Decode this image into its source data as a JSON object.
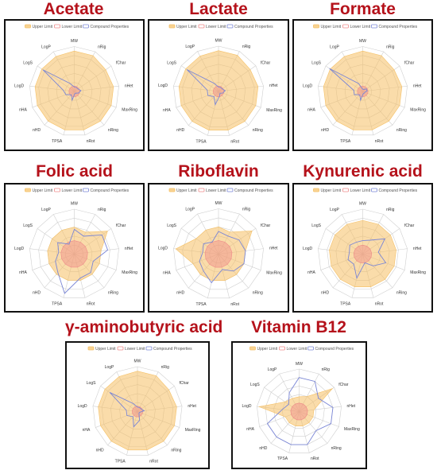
{
  "legend": {
    "upper": "Upper Limit",
    "lower": "Lower Limit",
    "compound": "Compound Properties"
  },
  "colors": {
    "upper": "#f5c065",
    "lower": "#ef8a8a",
    "compound": "#7a86d6",
    "title": "#b5121b",
    "grid": "#cfcfcf"
  },
  "axes": [
    "MW",
    "nRig",
    "fChar",
    "nHet",
    "MaxRing",
    "nRing",
    "nRot",
    "TPSA",
    "nHD",
    "nHA",
    "LogD",
    "LogS",
    "LogP"
  ],
  "chart_data": [
    {
      "type": "radar",
      "title": "Acetate",
      "series": [
        {
          "name": "Upper Limit",
          "values": [
            0.9,
            0.9,
            0.85,
            0.88,
            0.88,
            0.88,
            0.88,
            0.88,
            0.88,
            0.88,
            0.88,
            0.88,
            0.88
          ]
        },
        {
          "name": "Lower Limit",
          "values": [
            0.12,
            0.12,
            0.12,
            0.12,
            0.12,
            0.12,
            0.12,
            0.12,
            0.12,
            0.12,
            0.12,
            0.12,
            0.12
          ]
        },
        {
          "name": "Compound Properties",
          "values": [
            0.1,
            0.1,
            0.1,
            0.15,
            0.1,
            0.05,
            0.05,
            0.2,
            0.1,
            0.2,
            0.25,
            0.85,
            0.2
          ]
        }
      ]
    },
    {
      "type": "radar",
      "title": "Lactate",
      "series": [
        {
          "name": "Upper Limit",
          "values": [
            0.9,
            0.9,
            0.85,
            0.88,
            0.88,
            0.88,
            0.88,
            0.88,
            0.88,
            0.88,
            0.88,
            0.88,
            0.88
          ]
        },
        {
          "name": "Lower Limit",
          "values": [
            0.12,
            0.12,
            0.12,
            0.12,
            0.12,
            0.12,
            0.12,
            0.12,
            0.12,
            0.12,
            0.12,
            0.12,
            0.12
          ]
        },
        {
          "name": "Compound Properties",
          "values": [
            0.1,
            0.1,
            0.1,
            0.15,
            0.1,
            0.05,
            0.1,
            0.3,
            0.15,
            0.25,
            0.25,
            0.85,
            0.2
          ]
        }
      ]
    },
    {
      "type": "radar",
      "title": "Formate",
      "series": [
        {
          "name": "Upper Limit",
          "values": [
            0.9,
            0.9,
            0.85,
            0.88,
            0.88,
            0.88,
            0.88,
            0.88,
            0.88,
            0.88,
            0.88,
            0.88,
            0.88
          ]
        },
        {
          "name": "Lower Limit",
          "values": [
            0.12,
            0.12,
            0.12,
            0.12,
            0.12,
            0.12,
            0.12,
            0.12,
            0.12,
            0.12,
            0.12,
            0.12,
            0.12
          ]
        },
        {
          "name": "Compound Properties",
          "values": [
            0.05,
            0.05,
            0.1,
            0.1,
            0.05,
            0.05,
            0.05,
            0.2,
            0.1,
            0.2,
            0.2,
            0.9,
            0.2
          ]
        }
      ]
    },
    {
      "type": "radar",
      "title": "Folic acid",
      "series": [
        {
          "name": "Upper Limit",
          "values": [
            0.6,
            0.55,
            0.9,
            0.6,
            0.6,
            0.6,
            0.6,
            0.6,
            0.6,
            0.6,
            0.6,
            0.6,
            0.6
          ]
        },
        {
          "name": "Lower Limit",
          "values": [
            0.3,
            0.3,
            0.3,
            0.3,
            0.3,
            0.3,
            0.3,
            0.3,
            0.3,
            0.3,
            0.3,
            0.3,
            0.3
          ]
        },
        {
          "name": "Compound Properties",
          "values": [
            0.55,
            0.45,
            0.75,
            0.75,
            0.45,
            0.55,
            0.55,
            0.9,
            0.55,
            0.45,
            0.35,
            0.45,
            0.25
          ]
        }
      ]
    },
    {
      "type": "radar",
      "title": "Riboflavin",
      "series": [
        {
          "name": "Upper Limit",
          "values": [
            0.6,
            0.55,
            0.9,
            0.6,
            0.6,
            0.6,
            0.6,
            0.6,
            0.6,
            0.6,
            0.95,
            0.6,
            0.6
          ]
        },
        {
          "name": "Lower Limit",
          "values": [
            0.3,
            0.3,
            0.3,
            0.3,
            0.3,
            0.3,
            0.3,
            0.3,
            0.3,
            0.3,
            0.3,
            0.3,
            0.3
          ]
        },
        {
          "name": "Compound Properties",
          "values": [
            0.5,
            0.45,
            0.55,
            0.6,
            0.6,
            0.5,
            0.35,
            0.65,
            0.5,
            0.45,
            0.35,
            0.4,
            0.3
          ]
        }
      ]
    },
    {
      "type": "radar",
      "title": "Kynurenic acid",
      "series": [
        {
          "name": "Upper Limit",
          "values": [
            0.75,
            0.75,
            0.75,
            0.75,
            0.75,
            0.75,
            0.75,
            0.75,
            0.75,
            0.75,
            0.75,
            0.75,
            0.75
          ]
        },
        {
          "name": "Lower Limit",
          "values": [
            0.2,
            0.2,
            0.2,
            0.2,
            0.2,
            0.2,
            0.2,
            0.2,
            0.2,
            0.2,
            0.2,
            0.2,
            0.2
          ]
        },
        {
          "name": "Compound Properties",
          "values": [
            0.3,
            0.35,
            0.6,
            0.35,
            0.55,
            0.35,
            0.2,
            0.55,
            0.3,
            0.35,
            0.3,
            0.35,
            0.3
          ]
        }
      ]
    },
    {
      "type": "radar",
      "title": "γ-aminobutyric acid",
      "series": [
        {
          "name": "Upper Limit",
          "values": [
            0.9,
            0.9,
            0.85,
            0.88,
            0.88,
            0.88,
            0.88,
            0.88,
            0.88,
            0.88,
            0.88,
            0.88,
            0.88
          ]
        },
        {
          "name": "Lower Limit",
          "values": [
            0.12,
            0.12,
            0.12,
            0.12,
            0.12,
            0.12,
            0.12,
            0.12,
            0.12,
            0.12,
            0.12,
            0.12,
            0.12
          ]
        },
        {
          "name": "Compound Properties",
          "values": [
            0.1,
            0.1,
            0.1,
            0.15,
            0.05,
            0.05,
            0.2,
            0.35,
            0.15,
            0.25,
            0.25,
            0.75,
            0.2
          ]
        }
      ]
    },
    {
      "type": "radar",
      "title": "Vitamin B12",
      "series": [
        {
          "name": "Upper Limit",
          "values": [
            0.35,
            0.4,
            0.95,
            0.35,
            0.35,
            0.35,
            0.35,
            0.35,
            0.35,
            0.35,
            0.95,
            0.4,
            0.35
          ]
        },
        {
          "name": "Lower Limit",
          "values": [
            0.2,
            0.2,
            0.2,
            0.2,
            0.2,
            0.2,
            0.2,
            0.2,
            0.2,
            0.2,
            0.2,
            0.2,
            0.2
          ]
        },
        {
          "name": "Compound Properties",
          "values": [
            0.8,
            0.8,
            0.55,
            0.8,
            0.8,
            0.6,
            0.8,
            0.8,
            0.8,
            0.8,
            0.4,
            0.3,
            0.5
          ]
        }
      ]
    }
  ]
}
